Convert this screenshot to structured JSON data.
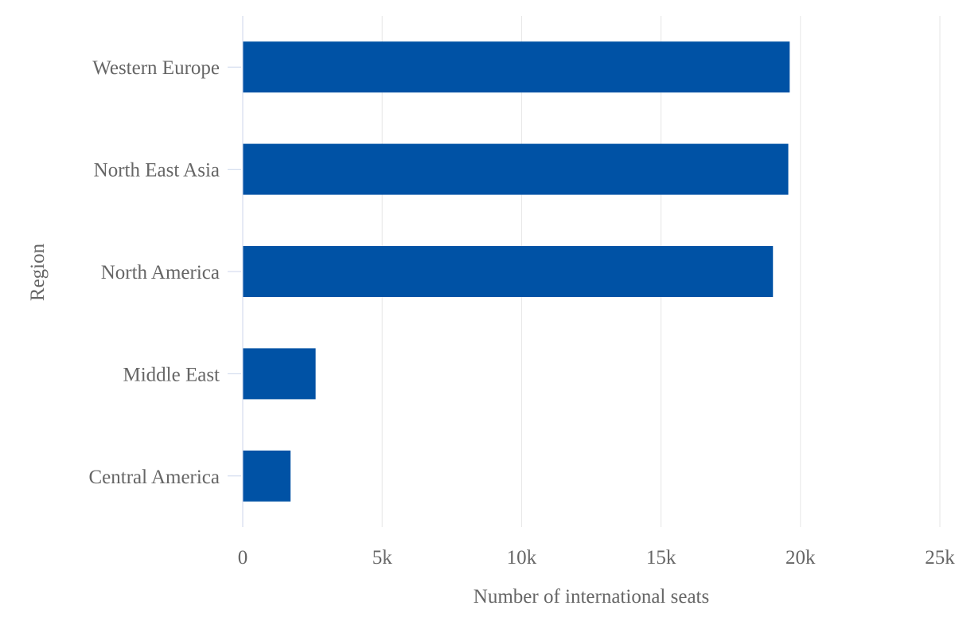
{
  "chart_data": {
    "type": "bar",
    "orientation": "horizontal",
    "title": "",
    "xlabel": "Number of international seats",
    "ylabel": "Region",
    "categories": [
      "Western Europe",
      "North East Asia",
      "North America",
      "Middle East",
      "Central America"
    ],
    "values": [
      19600,
      19550,
      19000,
      2600,
      1700
    ],
    "xlim": [
      0,
      25000
    ],
    "x_ticks": [
      0,
      5000,
      10000,
      15000,
      20000,
      25000
    ],
    "x_tick_labels": [
      "0",
      "5k",
      "10k",
      "15k",
      "20k",
      "25k"
    ],
    "grid": "vertical",
    "legend": "none",
    "colors": {
      "bar": "#0052a5",
      "grid": "#e6e6e6",
      "axis": "#ccd6eb",
      "text": "#666666"
    }
  }
}
